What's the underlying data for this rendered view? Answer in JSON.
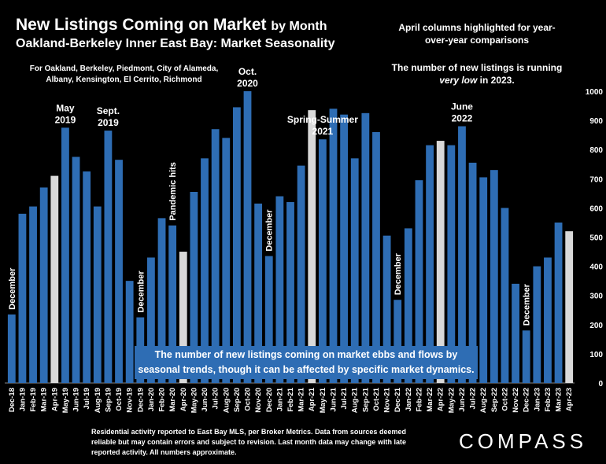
{
  "title_main": "New Listings Coming on Market",
  "title_main_suffix": "by Month",
  "title_sub": "Oakland-Berkeley Inner East Bay: Market Seasonality",
  "subnote": "For Oakland, Berkeley, Piedmont, City of Alameda, Albany, Kensington, El Cerrito, Richmond",
  "note_right_1": "April columns highlighted for year-over-year comparisons",
  "note_right_2_prefix": "The number of new listings is running ",
  "note_right_2_em": "very low",
  "note_right_2_suffix": " in 2023.",
  "banner": "The number of new listings coming on market ebbs and flows by seasonal trends, though it can be affected by specific market dynamics.",
  "footer": "Residential activity reported to East Bay MLS, per Broker Metrics. Data from sources deemed reliable but may contain errors and subject to revision. Last month data may change with late reported activity. All numbers approximate.",
  "logo": "COMPASS",
  "colors": {
    "bar": "#2e6db4",
    "highlight": "#d9d9d9",
    "background": "#000000"
  },
  "chart_data": {
    "type": "bar",
    "categories": [
      "Dec-18",
      "Jan-19",
      "Feb-19",
      "Mar-19",
      "Apr-19",
      "May-19",
      "Jun-19",
      "Jul-19",
      "Aug-19",
      "Sep-19",
      "Oct-19",
      "Nov-19",
      "Dec-19",
      "Jan-20",
      "Feb-20",
      "Mar-20",
      "Apr-20",
      "May-20",
      "Jun-20",
      "Jul-20",
      "Aug-20",
      "Sep-20",
      "Oct-20",
      "Nov-20",
      "Dec-20",
      "Jan-21",
      "Feb-21",
      "Mar-21",
      "Apr-21",
      "May-21",
      "Jun-21",
      "Jul-21",
      "Aug-21",
      "Sep-21",
      "Oct-21",
      "Nov-21",
      "Dec-21",
      "Jan-22",
      "Feb-22",
      "Mar-22",
      "Apr-22",
      "May-22",
      "Jun-22",
      "Jul-22",
      "Aug-22",
      "Sep-22",
      "Oct-22",
      "Nov-22",
      "Dec-22",
      "Jan-23",
      "Feb-23",
      "Mar-23",
      "Apr-23"
    ],
    "values": [
      235,
      580,
      605,
      670,
      710,
      875,
      775,
      725,
      605,
      865,
      765,
      350,
      225,
      430,
      565,
      540,
      450,
      655,
      770,
      870,
      840,
      945,
      1000,
      615,
      435,
      640,
      620,
      745,
      935,
      835,
      940,
      920,
      770,
      925,
      860,
      505,
      285,
      530,
      695,
      815,
      830,
      815,
      880,
      755,
      705,
      730,
      600,
      340,
      180,
      400,
      430,
      550,
      520
    ],
    "highlighted": [
      "Apr-19",
      "Apr-20",
      "Apr-21",
      "Apr-22",
      "Apr-23"
    ],
    "ylim": [
      0,
      1000
    ],
    "yticks": [
      0,
      100,
      200,
      300,
      400,
      500,
      600,
      700,
      800,
      900,
      1000
    ],
    "y_axis_side": "right",
    "annotations": [
      {
        "text": "December",
        "category": "Dec-18",
        "orientation": "vertical"
      },
      {
        "text": "May 2019",
        "category": "May-19",
        "orientation": "horizontal"
      },
      {
        "text": "Sept. 2019",
        "category": "Sep-19",
        "orientation": "horizontal"
      },
      {
        "text": "December",
        "category": "Dec-19",
        "orientation": "vertical"
      },
      {
        "text": "Pandemic hits",
        "category": "Mar-20",
        "orientation": "vertical"
      },
      {
        "text": "Oct. 2020",
        "category": "Oct-20",
        "orientation": "horizontal"
      },
      {
        "text": "December",
        "category": "Dec-20",
        "orientation": "vertical"
      },
      {
        "text": "Spring-Summer 2021",
        "category": "May-21",
        "orientation": "horizontal"
      },
      {
        "text": "December",
        "category": "Dec-21",
        "orientation": "vertical"
      },
      {
        "text": "June 2022",
        "category": "Jun-22",
        "orientation": "horizontal"
      },
      {
        "text": "December",
        "category": "Dec-22",
        "orientation": "vertical"
      }
    ]
  }
}
